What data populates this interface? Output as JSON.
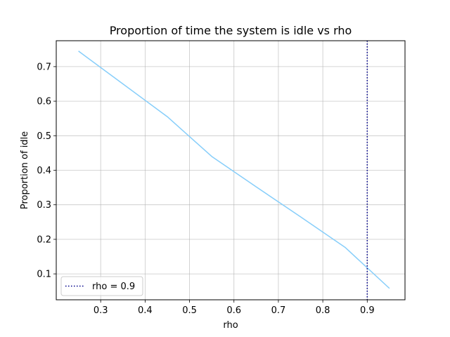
{
  "chart_data": {
    "type": "line",
    "title": "Proportion of time the system is idle vs rho",
    "xlabel": "rho",
    "ylabel": "Proportion of idle",
    "xlim": [
      0.2,
      0.985
    ],
    "ylim": [
      0.025,
      0.775
    ],
    "xticks": [
      "0.3",
      "0.4",
      "0.5",
      "0.6",
      "0.7",
      "0.8",
      "0.9"
    ],
    "yticks": [
      "0.1",
      "0.2",
      "0.3",
      "0.4",
      "0.5",
      "0.6",
      "0.7"
    ],
    "grid": true,
    "legend_position": "lower-left",
    "series": [
      {
        "color": "#87cefa",
        "x": [
          0.25,
          0.35,
          0.45,
          0.55,
          0.65,
          0.75,
          0.85,
          0.95
        ],
        "y": [
          0.745,
          0.65,
          0.555,
          0.44,
          0.352,
          0.265,
          0.177,
          0.058
        ]
      }
    ],
    "reference_lines": [
      {
        "name": "rho = 0.9",
        "orientation": "vertical",
        "x": 0.9,
        "color": "#00008b",
        "style": "dotted"
      }
    ]
  }
}
